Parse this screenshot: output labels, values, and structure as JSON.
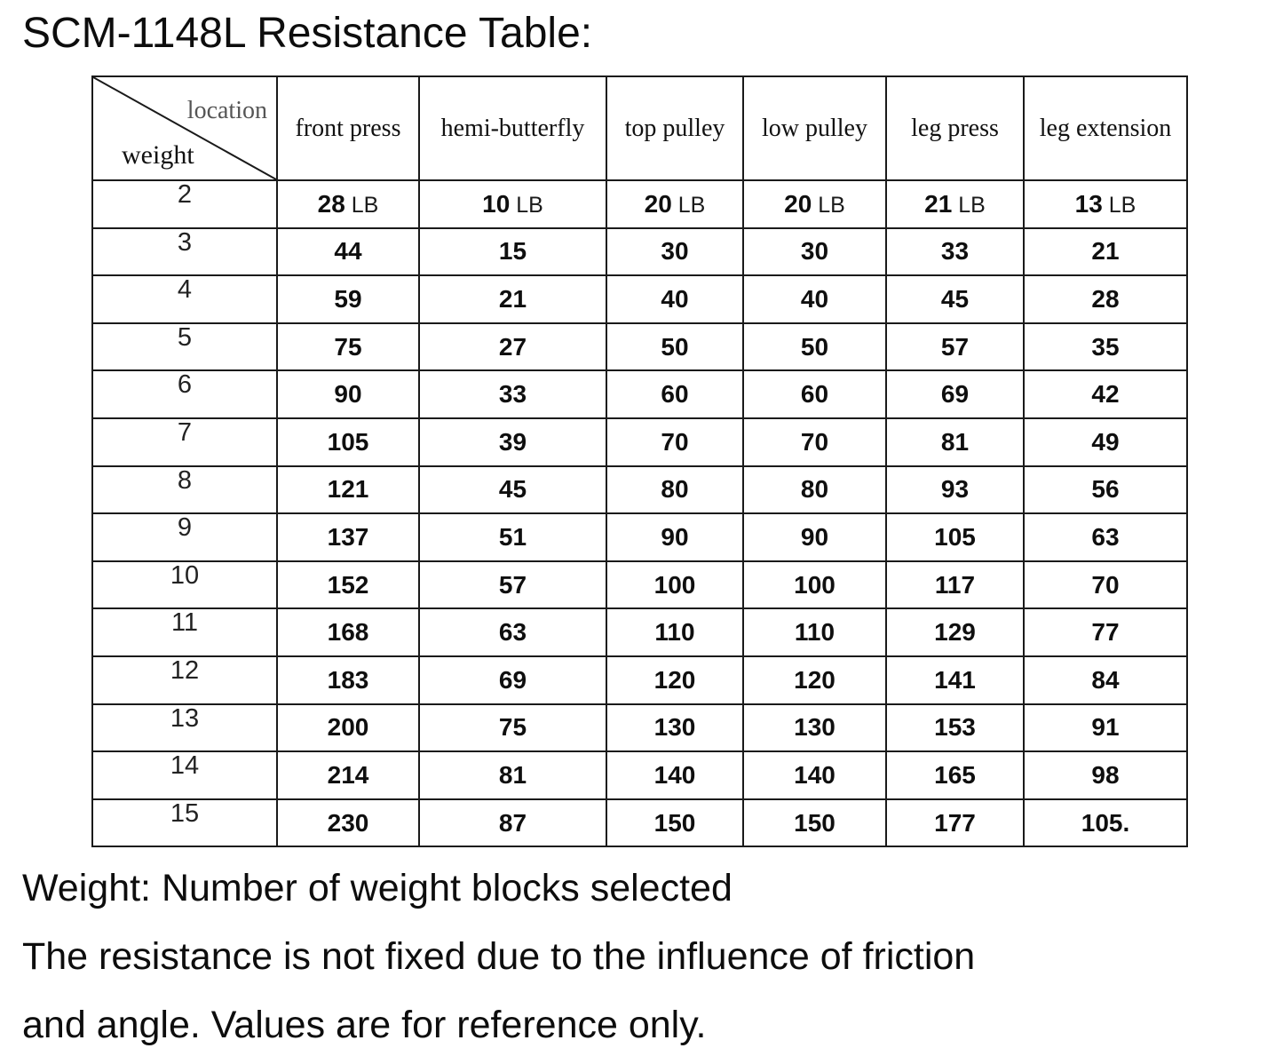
{
  "page": {
    "title": "SCM-1148L Resistance Table:"
  },
  "table": {
    "corner": {
      "location_label": "location",
      "weight_label": "weight"
    },
    "columns": [
      "front press",
      "hemi-butterfly",
      "top pulley",
      "low pulley",
      "leg press",
      "leg extension"
    ],
    "unit_label": "LB",
    "rows": [
      {
        "weight": "2",
        "values": [
          "28",
          "10",
          "20",
          "20",
          "21",
          "13"
        ]
      },
      {
        "weight": "3",
        "values": [
          "44",
          "15",
          "30",
          "30",
          "33",
          "21"
        ]
      },
      {
        "weight": "4",
        "values": [
          "59",
          "21",
          "40",
          "40",
          "45",
          "28"
        ]
      },
      {
        "weight": "5",
        "values": [
          "75",
          "27",
          "50",
          "50",
          "57",
          "35"
        ]
      },
      {
        "weight": "6",
        "values": [
          "90",
          "33",
          "60",
          "60",
          "69",
          "42"
        ]
      },
      {
        "weight": "7",
        "values": [
          "105",
          "39",
          "70",
          "70",
          "81",
          "49"
        ]
      },
      {
        "weight": "8",
        "values": [
          "121",
          "45",
          "80",
          "80",
          "93",
          "56"
        ]
      },
      {
        "weight": "9",
        "values": [
          "137",
          "51",
          "90",
          "90",
          "105",
          "63"
        ]
      },
      {
        "weight": "10",
        "values": [
          "152",
          "57",
          "100",
          "100",
          "117",
          "70"
        ]
      },
      {
        "weight": "11",
        "values": [
          "168",
          "63",
          "110",
          "110",
          "129",
          "77"
        ]
      },
      {
        "weight": "12",
        "values": [
          "183",
          "69",
          "120",
          "120",
          "141",
          "84"
        ]
      },
      {
        "weight": "13",
        "values": [
          "200",
          "75",
          "130",
          "130",
          "153",
          "91"
        ]
      },
      {
        "weight": "14",
        "values": [
          "214",
          "81",
          "140",
          "140",
          "165",
          "98"
        ]
      },
      {
        "weight": "15",
        "values": [
          "230",
          "87",
          "150",
          "150",
          "177",
          "105."
        ]
      }
    ]
  },
  "notes": {
    "line1": "Weight: Number of weight blocks selected",
    "line2": "The resistance is not fixed due to the influence of friction",
    "line3": "and angle. Values are for reference only."
  }
}
